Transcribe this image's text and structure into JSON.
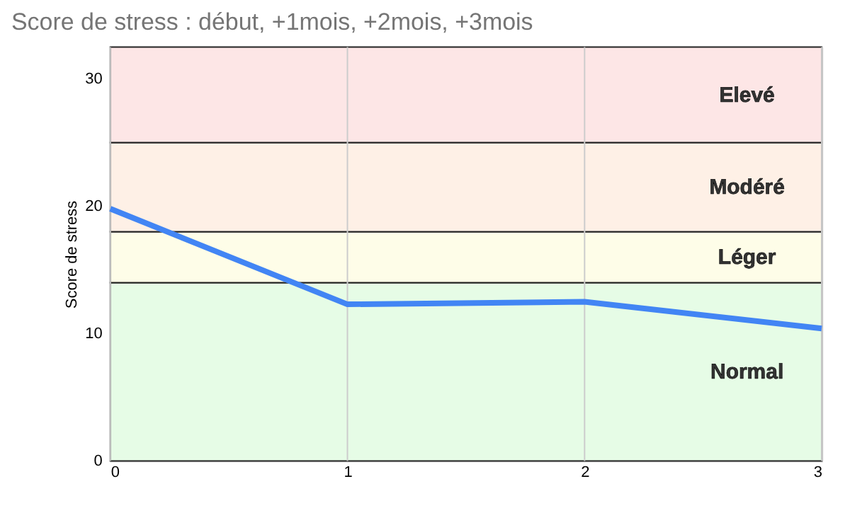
{
  "chart_data": {
    "type": "line",
    "title": "Score de stress : début, +1mois, +2mois, +3mois",
    "ylabel": "Score de stress",
    "x": [
      0,
      1,
      2,
      3
    ],
    "series": [
      {
        "color": "#4285f4",
        "values": [
          19.8,
          12.3,
          12.5,
          10.4
        ]
      }
    ],
    "xlim": [
      0,
      3
    ],
    "xticks": [
      0,
      1,
      2,
      3
    ],
    "ylim": [
      0,
      32.5
    ],
    "yticks": [
      0,
      10,
      20,
      30
    ],
    "grid": "x",
    "marker": "none",
    "line_style": "solid",
    "bands": [
      {
        "axis": "y",
        "from": 0,
        "to": 14,
        "label": "Normal",
        "color": "#e6fce6"
      },
      {
        "axis": "y",
        "from": 14,
        "to": 18,
        "label": "Léger",
        "color": "#fefde8"
      },
      {
        "axis": "y",
        "from": 18,
        "to": 25,
        "label": "Modéré",
        "color": "#fef0e6"
      },
      {
        "axis": "y",
        "from": 25,
        "to": 32.5,
        "label": "Elevé",
        "color": "#fde6e6"
      }
    ]
  }
}
